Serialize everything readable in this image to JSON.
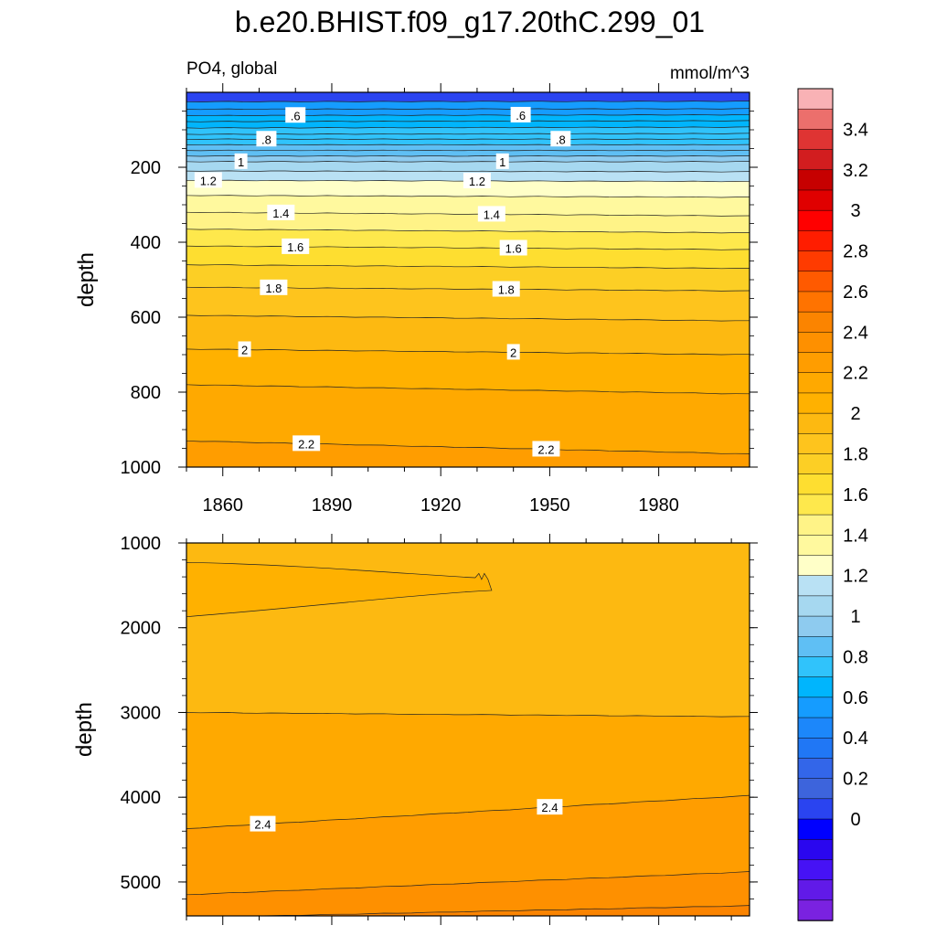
{
  "title": "b.e20.BHIST.f09_g17.20thC.299_01",
  "chart_data": [
    {
      "type": "contour",
      "panel": "top",
      "left_label": "PO4, global",
      "right_label": "mmol/m^3",
      "ylabel": "depth",
      "xlabel": "",
      "x_ticks": [
        1860,
        1890,
        1920,
        1950,
        1980
      ],
      "y_ticks": [
        200,
        400,
        600,
        800,
        1000
      ],
      "xlim": [
        1850,
        2005
      ],
      "ylim": [
        0,
        1000
      ],
      "y_inverted": true,
      "contour_lines": [
        {
          "level": 0.5,
          "depth_start": 25,
          "depth_end": 24
        },
        {
          "level": 0.55,
          "depth_start": 45,
          "depth_end": 44
        },
        {
          "level": 0.6,
          "depth_start": 62,
          "depth_end": 60,
          "label": ".6"
        },
        {
          "level": 0.65,
          "depth_start": 78,
          "depth_end": 76
        },
        {
          "level": 0.7,
          "depth_start": 95,
          "depth_end": 93
        },
        {
          "level": 0.75,
          "depth_start": 112,
          "depth_end": 110
        },
        {
          "level": 0.8,
          "depth_start": 125,
          "depth_end": 125,
          "label": ".8"
        },
        {
          "level": 0.85,
          "depth_start": 140,
          "depth_end": 140
        },
        {
          "level": 0.9,
          "depth_start": 155,
          "depth_end": 155
        },
        {
          "level": 0.95,
          "depth_start": 170,
          "depth_end": 170
        },
        {
          "level": 1.0,
          "depth_start": 185,
          "depth_end": 185,
          "label": "1"
        },
        {
          "level": 1.1,
          "depth_start": 210,
          "depth_end": 212
        },
        {
          "level": 1.2,
          "depth_start": 235,
          "depth_end": 238,
          "label": "1.2"
        },
        {
          "level": 1.3,
          "depth_start": 275,
          "depth_end": 280
        },
        {
          "level": 1.4,
          "depth_start": 320,
          "depth_end": 330,
          "label": "1.4"
        },
        {
          "level": 1.5,
          "depth_start": 365,
          "depth_end": 375
        },
        {
          "level": 1.6,
          "depth_start": 410,
          "depth_end": 420,
          "label": "1.6"
        },
        {
          "level": 1.7,
          "depth_start": 460,
          "depth_end": 470
        },
        {
          "level": 1.8,
          "depth_start": 520,
          "depth_end": 530,
          "label": "1.8"
        },
        {
          "level": 1.9,
          "depth_start": 595,
          "depth_end": 610
        },
        {
          "level": 2.0,
          "depth_start": 685,
          "depth_end": 700,
          "label": "2"
        },
        {
          "level": 2.1,
          "depth_start": 780,
          "depth_end": 805
        },
        {
          "level": 2.2,
          "depth_start": 930,
          "depth_end": 965,
          "label": "2.2"
        }
      ]
    },
    {
      "type": "contour",
      "panel": "bottom",
      "ylabel": "depth",
      "xlabel": "",
      "x_ticks": [
        1860,
        1890,
        1920,
        1950,
        1980
      ],
      "y_ticks": [
        1000,
        2000,
        3000,
        4000,
        5000
      ],
      "xlim": [
        1850,
        2005
      ],
      "ylim": [
        1000,
        5400
      ],
      "y_inverted": true,
      "contour_lines": [
        {
          "level": 2.3,
          "note": "closed region",
          "depth_top": 1230,
          "depth_bottom": 1870,
          "year_tip": 1932
        },
        {
          "level": 2.35,
          "depth_start": 3000,
          "depth_end": 3050
        },
        {
          "level": 2.4,
          "depth_start": 4370,
          "depth_end": 3980,
          "label": "2.4"
        },
        {
          "level": 2.5,
          "depth_start": 5150,
          "depth_end": 4880
        },
        {
          "level": 2.6,
          "depth_start": 5420,
          "depth_end": 5280
        }
      ]
    }
  ],
  "colorbar": {
    "labels": [
      "3.4",
      "3.2",
      "3",
      "2.8",
      "2.6",
      "2.4",
      "2.2",
      "2",
      "1.8",
      "1.6",
      "1.4",
      "1.2",
      "1",
      "0.8",
      "0.6",
      "0.4",
      "0.2",
      "0"
    ],
    "levels_top_to_bottom": [
      3.5,
      3.4,
      3.3,
      3.2,
      3.1,
      3.0,
      2.9,
      2.8,
      2.7,
      2.6,
      2.5,
      2.4,
      2.3,
      2.2,
      2.1,
      2.0,
      1.9,
      1.8,
      1.7,
      1.6,
      1.5,
      1.4,
      1.3,
      1.2,
      1.1,
      1.0,
      0.9,
      0.8,
      0.7,
      0.6,
      0.5,
      0.4,
      0.3,
      0.2,
      0.1,
      0.0
    ],
    "colors_top_to_bottom": [
      "#f9b2b5",
      "#ec6f6c",
      "#df3433",
      "#d21d1f",
      "#c60000",
      "#e00000",
      "#ff0000",
      "#ff1d00",
      "#ff3b00",
      "#ff5a00",
      "#ff7300",
      "#fb8400",
      "#fe9000",
      "#ff9d00",
      "#ffa900",
      "#ffb100",
      "#fdb911",
      "#fec41d",
      "#fccf25",
      "#fede30",
      "#fee84c",
      "#fff387",
      "#fff99e",
      "#ffffc8",
      "#b9e1f4",
      "#a6d8f0",
      "#8ecbef",
      "#5fbff4",
      "#30c3fb",
      "#00b5fd",
      "#159cff",
      "#1c87fa",
      "#2077f5",
      "#3366e9",
      "#3d64dc",
      "#2a44f0",
      "#0000ff",
      "#2a06ef",
      "#4612f5",
      "#611ae8",
      "#7a22e0"
    ]
  }
}
